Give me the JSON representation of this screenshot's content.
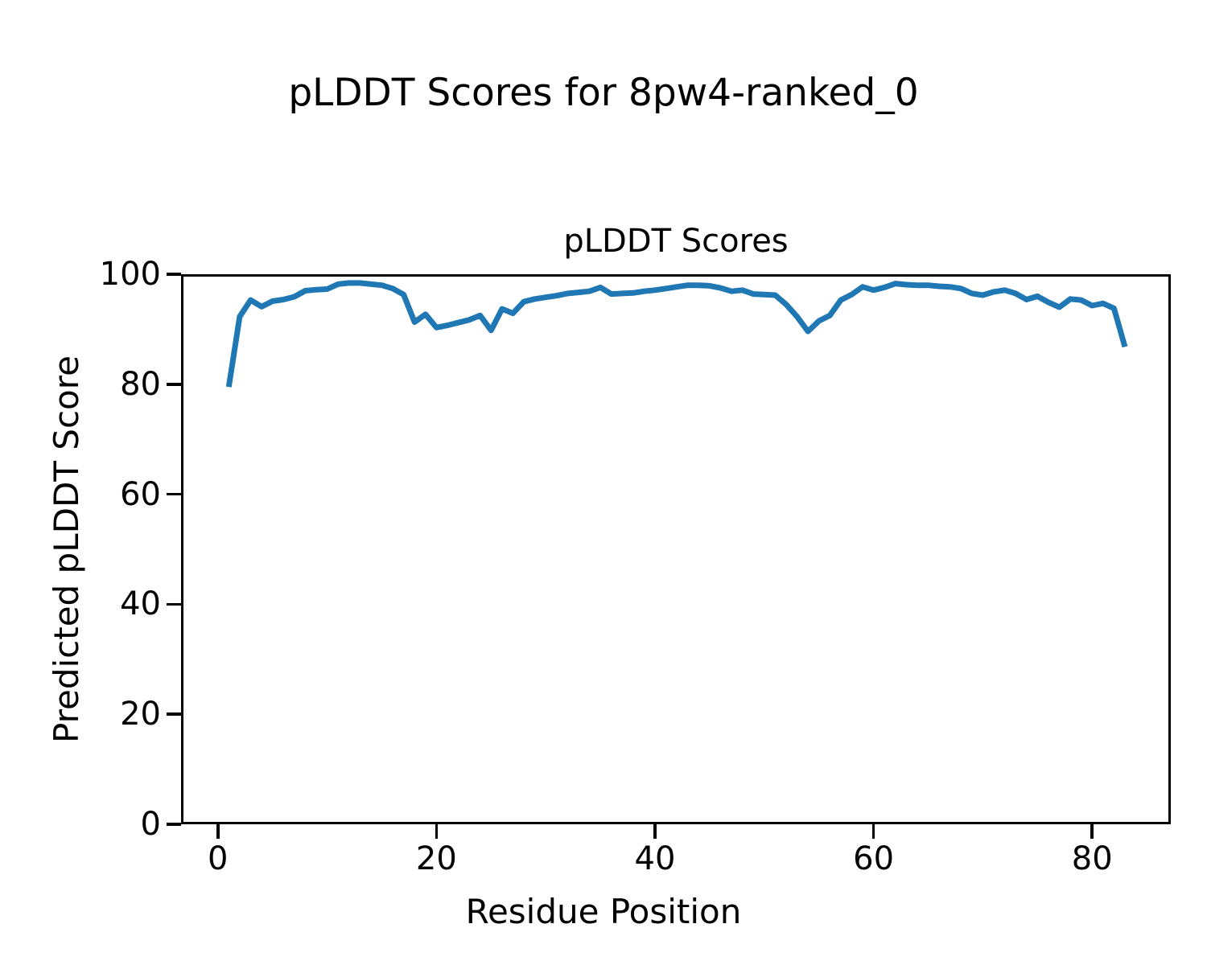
{
  "figure": {
    "suptitle": "pLDDT Scores for 8pw4-ranked_0"
  },
  "chart_data": {
    "type": "line",
    "title": "pLDDT Scores",
    "xlabel": "Residue Position",
    "ylabel": "Predicted pLDDT Score",
    "series_name": "pLDDT",
    "line_color": "#1f77b4",
    "line_width": 7,
    "grid": false,
    "legend": null,
    "xlim": [
      -3.37,
      87.2
    ],
    "ylim": [
      0,
      100
    ],
    "xticks": [
      0,
      20,
      40,
      60,
      80
    ],
    "yticks": [
      0,
      20,
      40,
      60,
      80,
      100
    ],
    "x": [
      1,
      2,
      3,
      4,
      5,
      6,
      7,
      8,
      9,
      10,
      11,
      12,
      13,
      14,
      15,
      16,
      17,
      18,
      19,
      20,
      21,
      22,
      23,
      24,
      25,
      26,
      27,
      28,
      29,
      30,
      31,
      32,
      33,
      34,
      35,
      36,
      37,
      38,
      39,
      40,
      41,
      42,
      43,
      44,
      45,
      46,
      47,
      48,
      49,
      50,
      51,
      52,
      53,
      54,
      55,
      56,
      57,
      58,
      59,
      60,
      61,
      62,
      63,
      64,
      65,
      66,
      67,
      68,
      69,
      70,
      71,
      72,
      73,
      74,
      75,
      76,
      77,
      78,
      79,
      80,
      81,
      82,
      83
    ],
    "values": [
      79.5,
      92.3,
      95.3,
      94.1,
      95.1,
      95.4,
      95.9,
      97.0,
      97.2,
      97.3,
      98.2,
      98.4,
      98.4,
      98.2,
      98.0,
      97.4,
      96.3,
      91.3,
      92.7,
      90.3,
      90.7,
      91.2,
      91.7,
      92.5,
      89.8,
      93.7,
      92.9,
      95.0,
      95.5,
      95.8,
      96.1,
      96.5,
      96.7,
      96.9,
      97.6,
      96.4,
      96.5,
      96.6,
      96.9,
      97.1,
      97.4,
      97.7,
      98.0,
      98.0,
      97.9,
      97.5,
      96.9,
      97.1,
      96.4,
      96.3,
      96.2,
      94.5,
      92.3,
      89.6,
      91.5,
      92.5,
      95.3,
      96.3,
      97.7,
      97.1,
      97.6,
      98.3,
      98.1,
      98.0,
      98.0,
      97.8,
      97.7,
      97.4,
      96.5,
      96.2,
      96.8,
      97.1,
      96.5,
      95.4,
      96.0,
      94.9,
      94.0,
      95.5,
      95.3,
      94.3,
      94.7,
      93.8,
      86.8
    ]
  }
}
